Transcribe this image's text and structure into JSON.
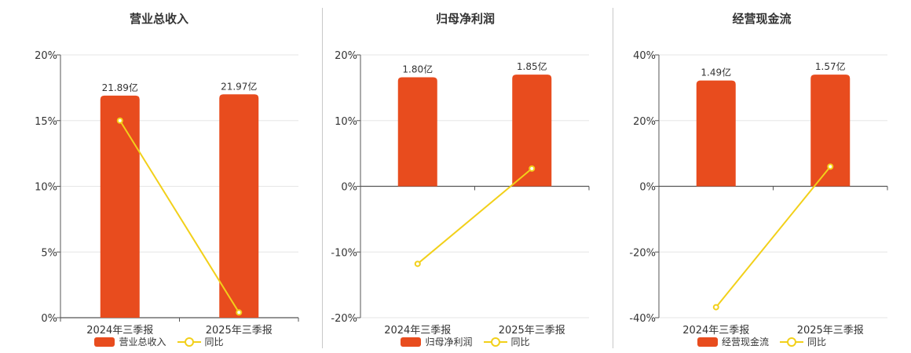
{
  "colors": {
    "bar": "#e84c1e",
    "line": "#f2d01a",
    "grid": "#e6e6e6",
    "axis": "#555555"
  },
  "legend_line_label": "同比",
  "chart_data": [
    {
      "type": "bar",
      "title": "营业总收入",
      "categories": [
        "2024年三季报",
        "2025年三季报"
      ],
      "bar_values": [
        21.89,
        21.97
      ],
      "bar_labels": [
        "21.89亿",
        "21.97亿"
      ],
      "bar_height_fraction": [
        0.845,
        0.85
      ],
      "series": [
        {
          "name": "营业总收入",
          "type": "bar"
        },
        {
          "name": "同比",
          "type": "line",
          "values": [
            15.0,
            0.4
          ]
        }
      ],
      "yticks": [
        "20%",
        "15%",
        "10%",
        "5%",
        "0%"
      ],
      "ylim": [
        0,
        20
      ],
      "legend_position": "bottom"
    },
    {
      "type": "bar",
      "title": "归母净利润",
      "categories": [
        "2024年三季报",
        "2025年三季报"
      ],
      "bar_values": [
        1.8,
        1.85
      ],
      "bar_labels": [
        "1.80亿",
        "1.85亿"
      ],
      "bar_height_fraction": [
        0.83,
        0.85
      ],
      "series": [
        {
          "name": "归母净利润",
          "type": "bar"
        },
        {
          "name": "同比",
          "type": "line",
          "values": [
            -11.8,
            2.7
          ]
        }
      ],
      "yticks": [
        "20%",
        "10%",
        "0%",
        "-10%",
        "-20%"
      ],
      "ylim": [
        -20,
        20
      ],
      "legend_position": "bottom"
    },
    {
      "type": "bar",
      "title": "经营现金流",
      "categories": [
        "2024年三季报",
        "2025年三季报"
      ],
      "bar_values": [
        1.49,
        1.57
      ],
      "bar_labels": [
        "1.49亿",
        "1.57亿"
      ],
      "bar_height_fraction": [
        0.805,
        0.85
      ],
      "series": [
        {
          "name": "经营现金流",
          "type": "bar"
        },
        {
          "name": "同比",
          "type": "line",
          "values": [
            -36.8,
            6.0
          ]
        }
      ],
      "yticks": [
        "40%",
        "20%",
        "0%",
        "-20%",
        "-40%"
      ],
      "ylim": [
        -40,
        40
      ],
      "legend_position": "bottom"
    }
  ]
}
